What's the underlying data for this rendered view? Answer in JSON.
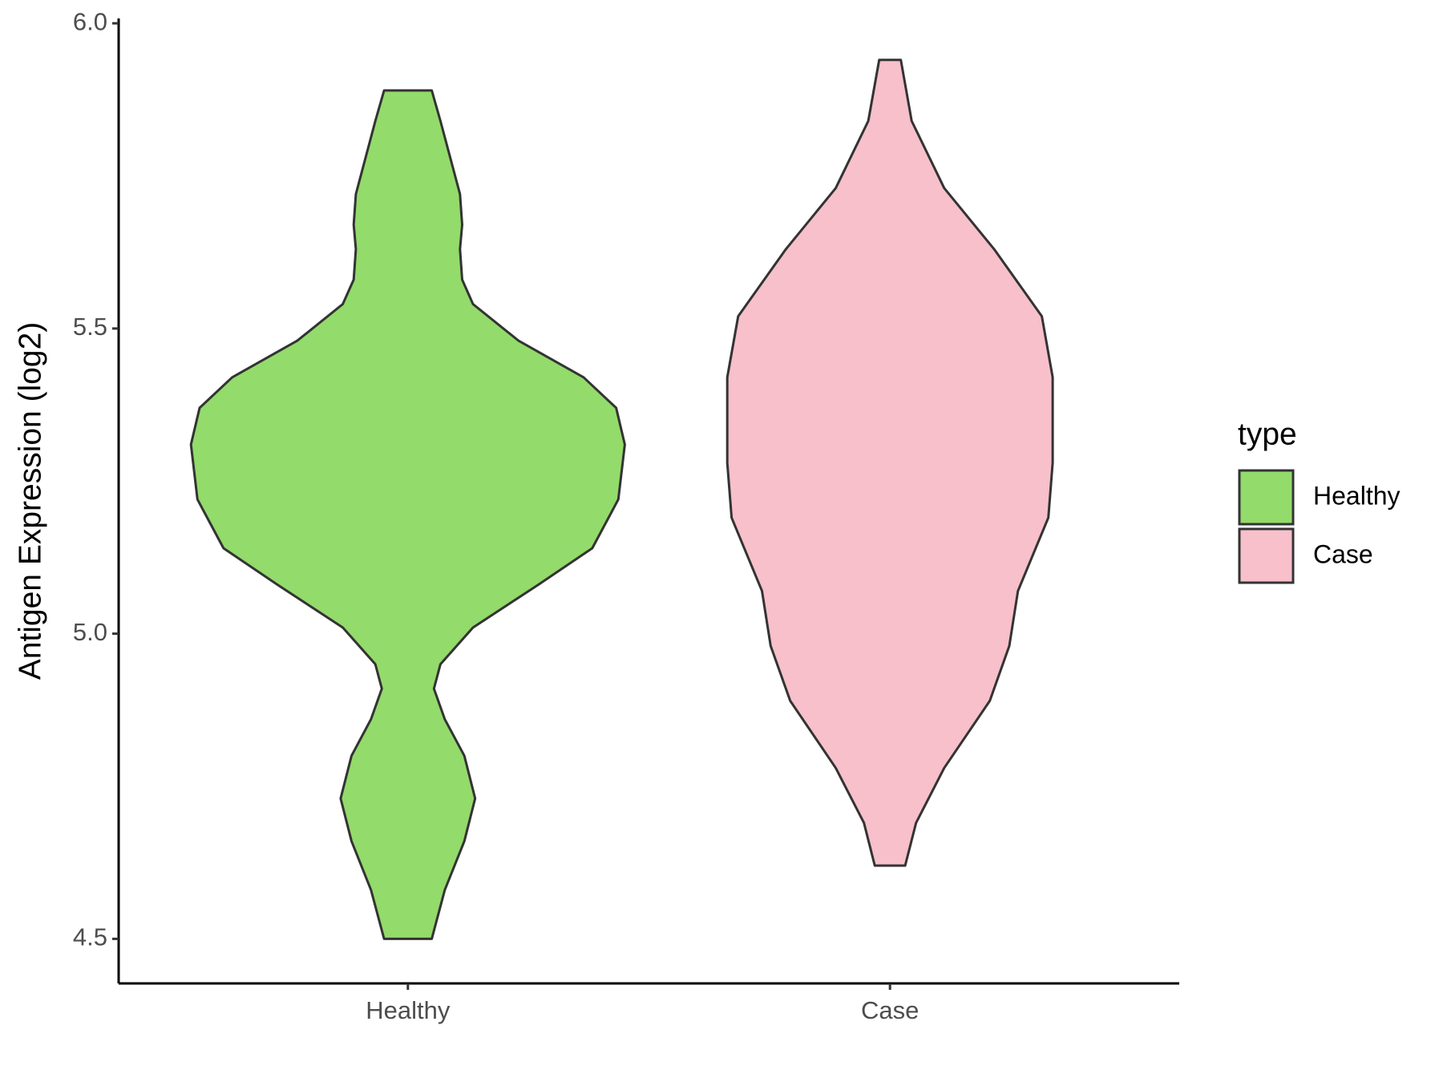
{
  "chart_data": {
    "type": "violin",
    "y_label": "Antigen Expression (log2)",
    "legend_title": "type",
    "categories": [
      "Healthy",
      "Case"
    ],
    "ylim": [
      4.427,
      6.008
    ],
    "yticks": [
      4.5,
      {
        "value": 5,
        "label": "5.0"
      },
      5.5,
      {
        "value": 6,
        "label": "6.0"
      }
    ],
    "series": [
      {
        "name": "Healthy",
        "color": "#93db6b",
        "y": [
          5.89,
          5.84,
          5.72,
          5.67,
          5.63,
          5.58,
          5.54,
          5.48,
          5.42,
          5.37,
          5.31,
          5.22,
          5.14,
          5.08,
          5.01,
          4.95,
          4.91,
          4.86,
          4.8,
          4.73,
          4.66,
          4.58,
          4.5
        ],
        "width": [
          0.11,
          0.15,
          0.24,
          0.25,
          0.24,
          0.25,
          0.3,
          0.51,
          0.81,
          0.96,
          1.0,
          0.97,
          0.85,
          0.6,
          0.3,
          0.15,
          0.12,
          0.17,
          0.26,
          0.31,
          0.26,
          0.17,
          0.11
        ]
      },
      {
        "name": "Case",
        "color": "#f7c0cb",
        "y": [
          5.94,
          5.84,
          5.73,
          5.63,
          5.52,
          5.42,
          5.28,
          5.19,
          5.07,
          4.98,
          4.89,
          4.78,
          4.69,
          4.62
        ],
        "width": [
          0.05,
          0.1,
          0.25,
          0.48,
          0.7,
          0.75,
          0.75,
          0.73,
          0.59,
          0.55,
          0.46,
          0.25,
          0.12,
          0.07
        ]
      }
    ]
  }
}
